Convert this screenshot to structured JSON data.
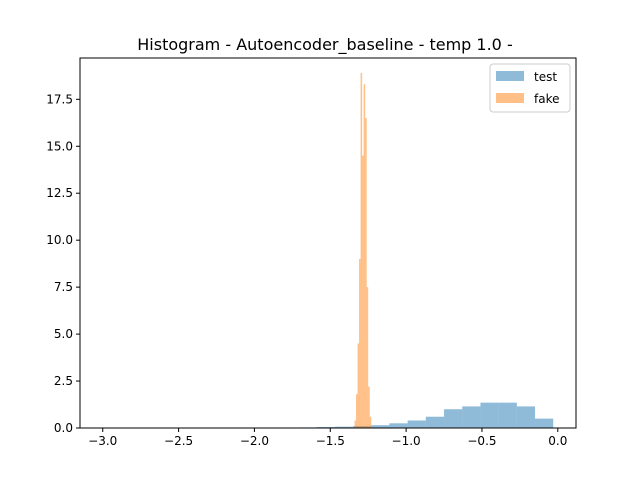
{
  "chart_data": {
    "type": "bar",
    "title": "Histogram - Autoencoder_baseline - temp 1.0 -",
    "xlabel": "",
    "ylabel": "",
    "xlim": [
      -3.15,
      0.12
    ],
    "ylim": [
      0,
      19.7
    ],
    "x_ticks": [
      -3.0,
      -2.5,
      -2.0,
      -1.5,
      -1.0,
      -0.5,
      0.0
    ],
    "x_tick_labels": [
      "−3.0",
      "−2.5",
      "−2.0",
      "−1.5",
      "−1.0",
      "−0.5",
      "0.0"
    ],
    "y_ticks": [
      0.0,
      2.5,
      5.0,
      7.5,
      10.0,
      12.5,
      15.0,
      17.5
    ],
    "y_tick_labels": [
      "0.0",
      "2.5",
      "5.0",
      "7.5",
      "10.0",
      "12.5",
      "15.0",
      "17.5"
    ],
    "grid": false,
    "legend": "top-right",
    "series": [
      {
        "name": "test",
        "color": "#1f77b4",
        "alpha": 0.5,
        "bin_edges": [
          -3.03,
          -2.91,
          -2.79,
          -2.67,
          -2.55,
          -2.43,
          -2.31,
          -2.19,
          -2.07,
          -1.95,
          -1.83,
          -1.71,
          -1.59,
          -1.47,
          -1.35,
          -1.23,
          -1.11,
          -0.99,
          -0.87,
          -0.75,
          -0.63,
          -0.51,
          -0.39,
          -0.27,
          -0.15,
          -0.03
        ],
        "values": [
          0.01,
          0.01,
          0.01,
          0.01,
          0.01,
          0.01,
          0.01,
          0.01,
          0.02,
          0.02,
          0.02,
          0.03,
          0.05,
          0.07,
          0.1,
          0.15,
          0.25,
          0.4,
          0.6,
          1.0,
          1.15,
          1.35,
          1.35,
          1.15,
          0.5
        ]
      },
      {
        "name": "fake",
        "color": "#ff7f0e",
        "alpha": 0.5,
        "bin_edges": [
          -1.34,
          -1.33,
          -1.32,
          -1.31,
          -1.3,
          -1.29,
          -1.28,
          -1.27,
          -1.26,
          -1.25,
          -1.24,
          -1.23
        ],
        "values": [
          0.4,
          1.8,
          4.5,
          9.0,
          18.9,
          14.5,
          18.3,
          16.5,
          7.5,
          2.2,
          0.6
        ]
      }
    ]
  }
}
